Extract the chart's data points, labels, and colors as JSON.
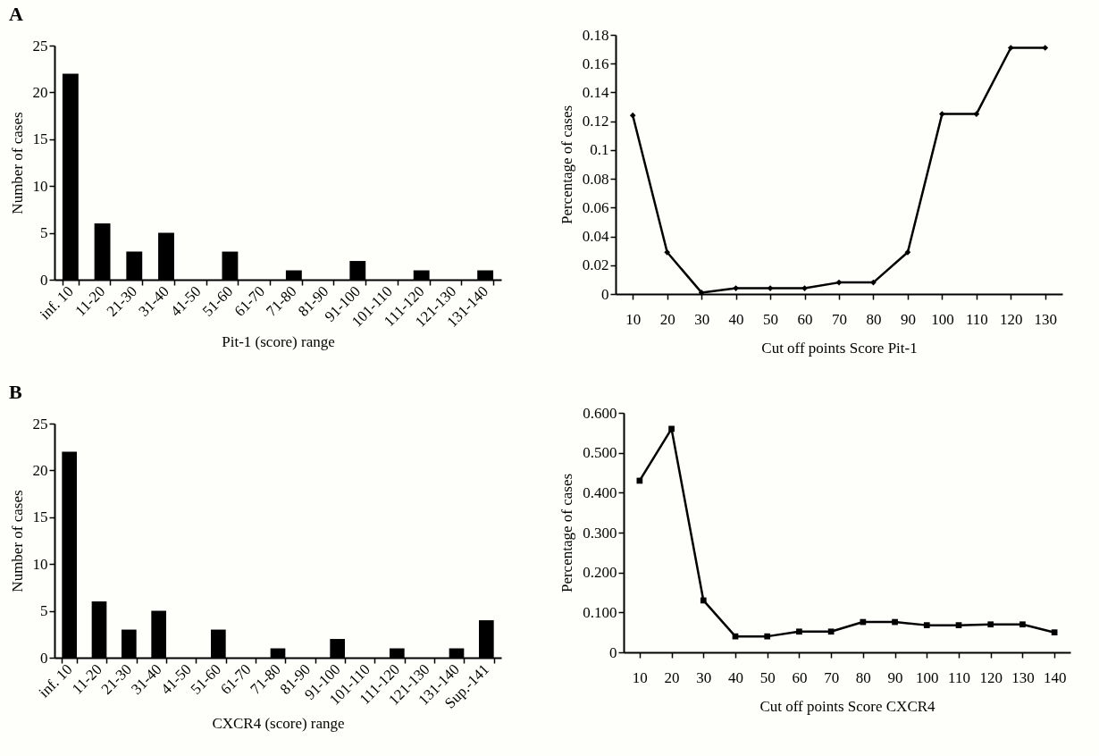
{
  "chart_data": [
    {
      "type": "bar",
      "title": "A",
      "xlabel": "Pit-1 (score) range",
      "ylabel": "Number of cases",
      "categories": [
        "inf. 10",
        "11-20",
        "21-30",
        "31-40",
        "41-50",
        "51-60",
        "61-70",
        "71-80",
        "81-90",
        "91-100",
        "101-110",
        "111-120",
        "121-130",
        "131-140"
      ],
      "values": [
        22,
        6,
        3,
        5,
        0,
        3,
        0,
        1,
        0,
        2,
        0,
        1,
        0,
        1
      ],
      "color": "#000000",
      "ylim": [
        0,
        25
      ],
      "yticks": [
        0,
        5,
        10,
        15,
        20,
        25
      ]
    },
    {
      "type": "line",
      "xlabel": "Cut off points Score Pit-1",
      "ylabel": "Percentage  of cases",
      "categories": [
        "10",
        "20",
        "30",
        "40",
        "50",
        "60",
        "70",
        "80",
        "90",
        "100",
        "110",
        "120",
        "130"
      ],
      "values": [
        0.124,
        0.029,
        0.001,
        0.004,
        0.004,
        0.004,
        0.008,
        0.008,
        0.029,
        0.125,
        0.125,
        0.171,
        0.171
      ],
      "color": "#000000",
      "marker": "diamond",
      "ylim": [
        0,
        0.18
      ],
      "yticks": [
        0,
        0.02,
        0.04,
        0.06,
        0.08,
        {
          "value": 0.1,
          "label": "0.1"
        },
        0.12,
        0.14,
        0.16,
        0.18
      ]
    },
    {
      "type": "bar",
      "title": "B",
      "xlabel": "CXCR4  (score) range",
      "ylabel": "Number of cases",
      "categories": [
        "inf. 10",
        "11-20",
        "21-30",
        "31-40",
        "41-50",
        "51-60",
        "61-70",
        "71-80",
        "81-90",
        "91-100",
        "101-110",
        "111-120",
        "121-130",
        "131-140",
        "Sup.-141"
      ],
      "values": [
        22,
        6,
        3,
        5,
        0,
        3,
        0,
        1,
        0,
        2,
        0,
        1,
        0,
        1,
        4
      ],
      "color": "#000000",
      "ylim": [
        0,
        25
      ],
      "yticks": [
        0,
        5,
        10,
        15,
        20,
        25
      ]
    },
    {
      "type": "line",
      "xlabel": "Cut off points Score CXCR4",
      "ylabel": "Percentage  of cases",
      "categories": [
        "10",
        "20",
        "30",
        "40",
        "50",
        "60",
        "70",
        "80",
        "90",
        "100",
        "110",
        "120",
        "130",
        "140"
      ],
      "values": [
        0.43,
        0.56,
        0.13,
        0.04,
        0.04,
        0.052,
        0.052,
        0.076,
        0.076,
        0.068,
        0.068,
        0.07,
        0.07,
        0.05
      ],
      "color": "#000000",
      "marker": "square",
      "ylim": [
        0,
        0.6
      ],
      "yticks": [
        0,
        {
          "value": 0.1,
          "label": "0.100"
        },
        {
          "value": 0.2,
          "label": "0.200"
        },
        {
          "value": 0.3,
          "label": "0.300"
        },
        {
          "value": 0.4,
          "label": "0.400"
        },
        {
          "value": 0.5,
          "label": "0.500"
        },
        {
          "value": 0.6,
          "label": "0.600"
        }
      ]
    }
  ]
}
